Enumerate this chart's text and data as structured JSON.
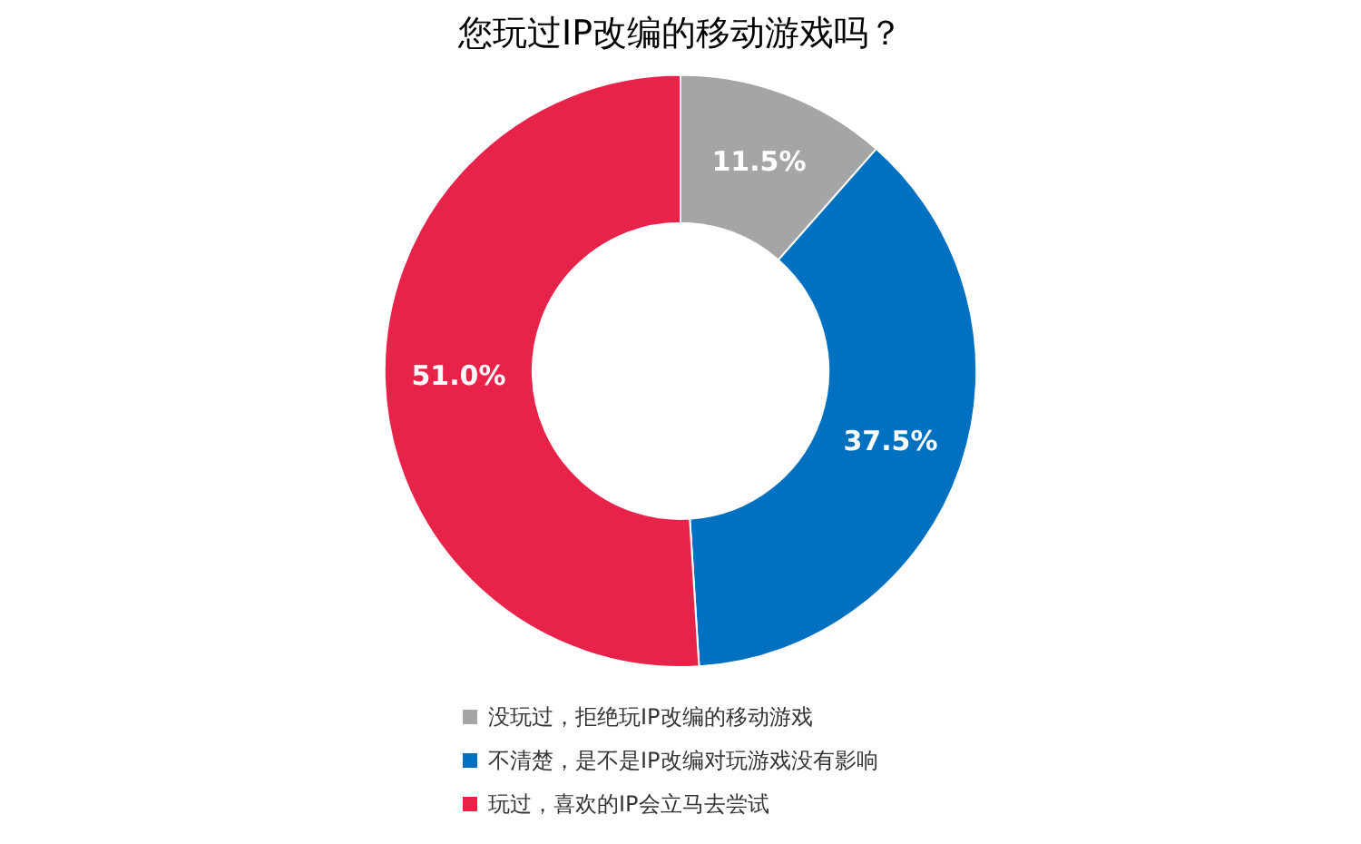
{
  "chart_data": {
    "type": "donut",
    "title": "您玩过IP改编的移动游戏吗？",
    "categories": [
      "没玩过，拒绝玩IP改编的移动游戏",
      "不清楚，是不是IP改编对玩游戏没有影响",
      "玩过，喜欢的IP会立马去尝试"
    ],
    "values": [
      11.5,
      37.5,
      51.0
    ],
    "value_labels": [
      "11.5%",
      "37.5%",
      "51.0%"
    ],
    "colors": [
      "#a5a5a5",
      "#0070c0",
      "#e8234a"
    ],
    "legend": "bottom"
  }
}
